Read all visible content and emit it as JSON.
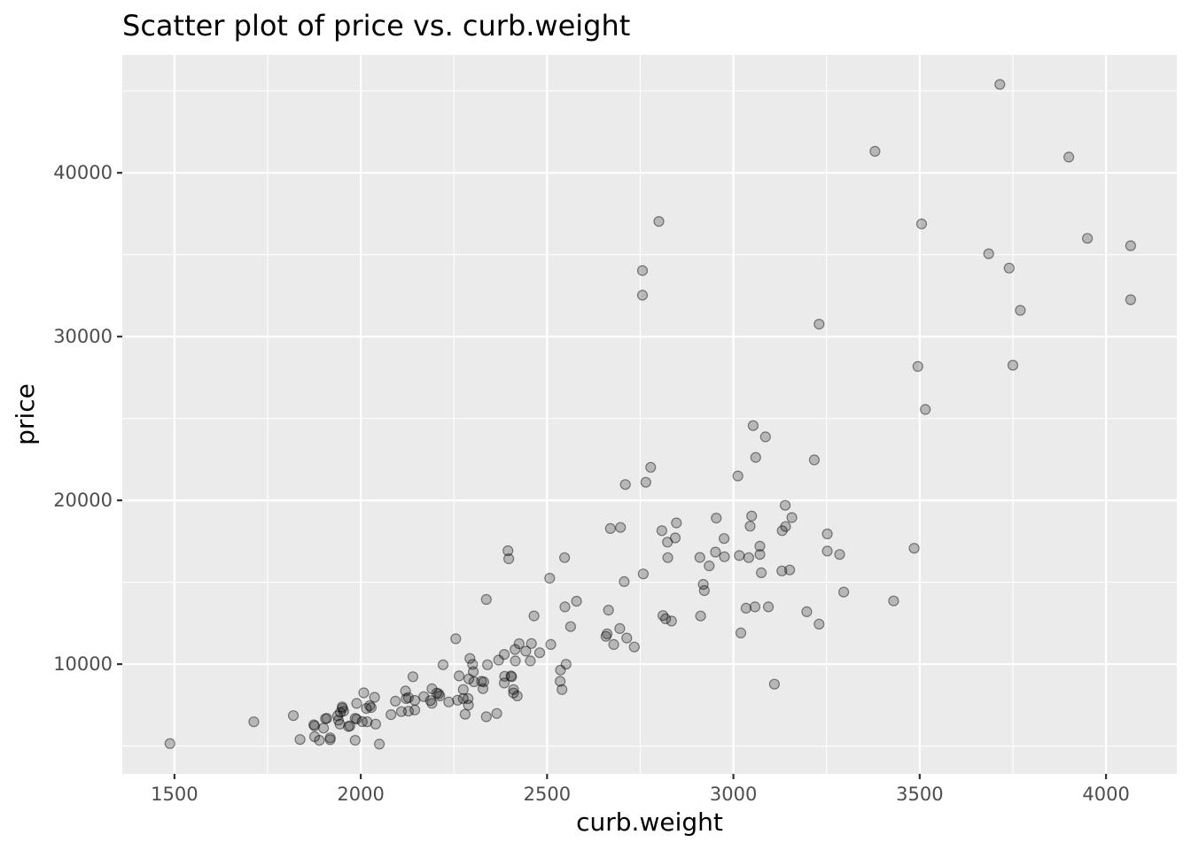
{
  "chart_data": {
    "type": "scatter",
    "title": "Scatter plot of price vs. curb.weight",
    "xlabel": "curb.weight",
    "ylabel": "price",
    "xlim": [
      1360,
      4190
    ],
    "ylim": [
      3300,
      47200
    ],
    "x_ticks": [
      1500,
      2000,
      2500,
      3000,
      3500,
      4000
    ],
    "x_tick_labels": [
      "1500",
      "2000",
      "2500",
      "3000",
      "3500",
      "4000"
    ],
    "y_ticks": [
      10000,
      20000,
      30000,
      40000
    ],
    "y_tick_labels": [
      "10000",
      "20000",
      "30000",
      "40000"
    ],
    "x_minor": [
      1750,
      2250,
      2750,
      3250,
      3750
    ],
    "y_minor": [
      5000,
      15000,
      25000,
      35000,
      45000
    ],
    "grid": true,
    "background": "#ebebeb",
    "point_color": "#000000",
    "point_alpha": 0.22,
    "points": [
      [
        1488,
        5151
      ],
      [
        1713,
        6479
      ],
      [
        1819,
        6855
      ],
      [
        1837,
        5399
      ],
      [
        1874,
        6295
      ],
      [
        1876,
        6229
      ],
      [
        1876,
        5572
      ],
      [
        1889,
        5348
      ],
      [
        1900,
        6095
      ],
      [
        1905,
        6669
      ],
      [
        1909,
        6692
      ],
      [
        1918,
        5499
      ],
      [
        1918,
        5389
      ],
      [
        1938,
        6849
      ],
      [
        1940,
        6575
      ],
      [
        1944,
        6338
      ],
      [
        1945,
        7053
      ],
      [
        1950,
        7395
      ],
      [
        1951,
        7299
      ],
      [
        1954,
        7129
      ],
      [
        1967,
        6189
      ],
      [
        1971,
        6229
      ],
      [
        1989,
        7603
      ],
      [
        1985,
        6692
      ],
      [
        1989,
        6649
      ],
      [
        1985,
        5348
      ],
      [
        2004,
        6488
      ],
      [
        2008,
        8249
      ],
      [
        2015,
        7295
      ],
      [
        2017,
        6479
      ],
      [
        2024,
        7463
      ],
      [
        2028,
        7349
      ],
      [
        2037,
        7975
      ],
      [
        2040,
        6338
      ],
      [
        2050,
        5118
      ],
      [
        2081,
        6918
      ],
      [
        2093,
        7738
      ],
      [
        2109,
        7099
      ],
      [
        2120,
        8358
      ],
      [
        2122,
        7898
      ],
      [
        2128,
        7957
      ],
      [
        2128,
        7126
      ],
      [
        2140,
        9233
      ],
      [
        2145,
        7788
      ],
      [
        2145,
        7198
      ],
      [
        2169,
        8013
      ],
      [
        2187,
        7775
      ],
      [
        2191,
        8495
      ],
      [
        2191,
        7609
      ],
      [
        2204,
        8238
      ],
      [
        2209,
        8189
      ],
      [
        2212,
        8058
      ],
      [
        2221,
        9959
      ],
      [
        2236,
        7689
      ],
      [
        2255,
        11549
      ],
      [
        2260,
        7799
      ],
      [
        2264,
        9279
      ],
      [
        2275,
        7898
      ],
      [
        2275,
        8449
      ],
      [
        2280,
        6938
      ],
      [
        2288,
        7895
      ],
      [
        2289,
        7499
      ],
      [
        2290,
        9095
      ],
      [
        2293,
        10345
      ],
      [
        2300,
        9980
      ],
      [
        2302,
        9538
      ],
      [
        2304,
        8921
      ],
      [
        2324,
        8948
      ],
      [
        2328,
        8499
      ],
      [
        2330,
        8916
      ],
      [
        2337,
        6785
      ],
      [
        2337,
        13950
      ],
      [
        2340,
        9960
      ],
      [
        2365,
        6989
      ],
      [
        2370,
        10245
      ],
      [
        2385,
        10595
      ],
      [
        2385,
        8845
      ],
      [
        2386,
        9258
      ],
      [
        2395,
        16925
      ],
      [
        2397,
        16430
      ],
      [
        2403,
        9279
      ],
      [
        2405,
        9233
      ],
      [
        2410,
        8238
      ],
      [
        2414,
        10898
      ],
      [
        2415,
        10198
      ],
      [
        2410,
        8449
      ],
      [
        2420,
        8058
      ],
      [
        2425,
        11248
      ],
      [
        2443,
        10795
      ],
      [
        2458,
        11259
      ],
      [
        2455,
        10198
      ],
      [
        2465,
        12945
      ],
      [
        2480,
        10698
      ],
      [
        2507,
        15250
      ],
      [
        2510,
        11199
      ],
      [
        2535,
        8948
      ],
      [
        2536,
        9639
      ],
      [
        2540,
        8449
      ],
      [
        2547,
        16500
      ],
      [
        2548,
        13495
      ],
      [
        2551,
        9995
      ],
      [
        2563,
        12290
      ],
      [
        2579,
        13845
      ],
      [
        2658,
        11694
      ],
      [
        2661,
        11845
      ],
      [
        2665,
        13295
      ],
      [
        2670,
        18280
      ],
      [
        2679,
        11199
      ],
      [
        2695,
        12170
      ],
      [
        2697,
        18344
      ],
      [
        2707,
        15040
      ],
      [
        2710,
        20970
      ],
      [
        2714,
        11595
      ],
      [
        2734,
        11048
      ],
      [
        2756,
        34028
      ],
      [
        2756,
        32528
      ],
      [
        2758,
        15510
      ],
      [
        2765,
        21105
      ],
      [
        2778,
        22018
      ],
      [
        2800,
        37028
      ],
      [
        2808,
        18150
      ],
      [
        2811,
        12964
      ],
      [
        2818,
        12764
      ],
      [
        2823,
        17450
      ],
      [
        2824,
        16500
      ],
      [
        2834,
        12629
      ],
      [
        2844,
        17710
      ],
      [
        2847,
        18620
      ],
      [
        2910,
        16515
      ],
      [
        2912,
        12940
      ],
      [
        2919,
        14869
      ],
      [
        2922,
        14489
      ],
      [
        2935,
        15998
      ],
      [
        2952,
        16845
      ],
      [
        2954,
        18920
      ],
      [
        2975,
        17669
      ],
      [
        2976,
        16558
      ],
      [
        3012,
        21485
      ],
      [
        3016,
        16630
      ],
      [
        3020,
        11900
      ],
      [
        3034,
        13415
      ],
      [
        3041,
        16500
      ],
      [
        3045,
        18420
      ],
      [
        3049,
        19045
      ],
      [
        3053,
        24565
      ],
      [
        3060,
        22625
      ],
      [
        3058,
        13499
      ],
      [
        3071,
        17199
      ],
      [
        3071,
        16695
      ],
      [
        3075,
        15580
      ],
      [
        3086,
        23875
      ],
      [
        3094,
        13499
      ],
      [
        3110,
        8778
      ],
      [
        3131,
        18150
      ],
      [
        3130,
        15690
      ],
      [
        3139,
        19699
      ],
      [
        3140,
        18399
      ],
      [
        3151,
        15750
      ],
      [
        3157,
        18950
      ],
      [
        3197,
        13200
      ],
      [
        3217,
        22470
      ],
      [
        3230,
        30760
      ],
      [
        3230,
        12440
      ],
      [
        3252,
        17950
      ],
      [
        3252,
        16900
      ],
      [
        3285,
        16695
      ],
      [
        3296,
        14399
      ],
      [
        3380,
        41315
      ],
      [
        3430,
        13860
      ],
      [
        3485,
        17075
      ],
      [
        3495,
        28176
      ],
      [
        3505,
        36880
      ],
      [
        3515,
        25552
      ],
      [
        3685,
        35056
      ],
      [
        3715,
        45400
      ],
      [
        3740,
        34184
      ],
      [
        3750,
        28248
      ],
      [
        3770,
        31600
      ],
      [
        3900,
        40960
      ],
      [
        3950,
        36000
      ],
      [
        4066,
        35550
      ],
      [
        4066,
        32250
      ]
    ]
  }
}
